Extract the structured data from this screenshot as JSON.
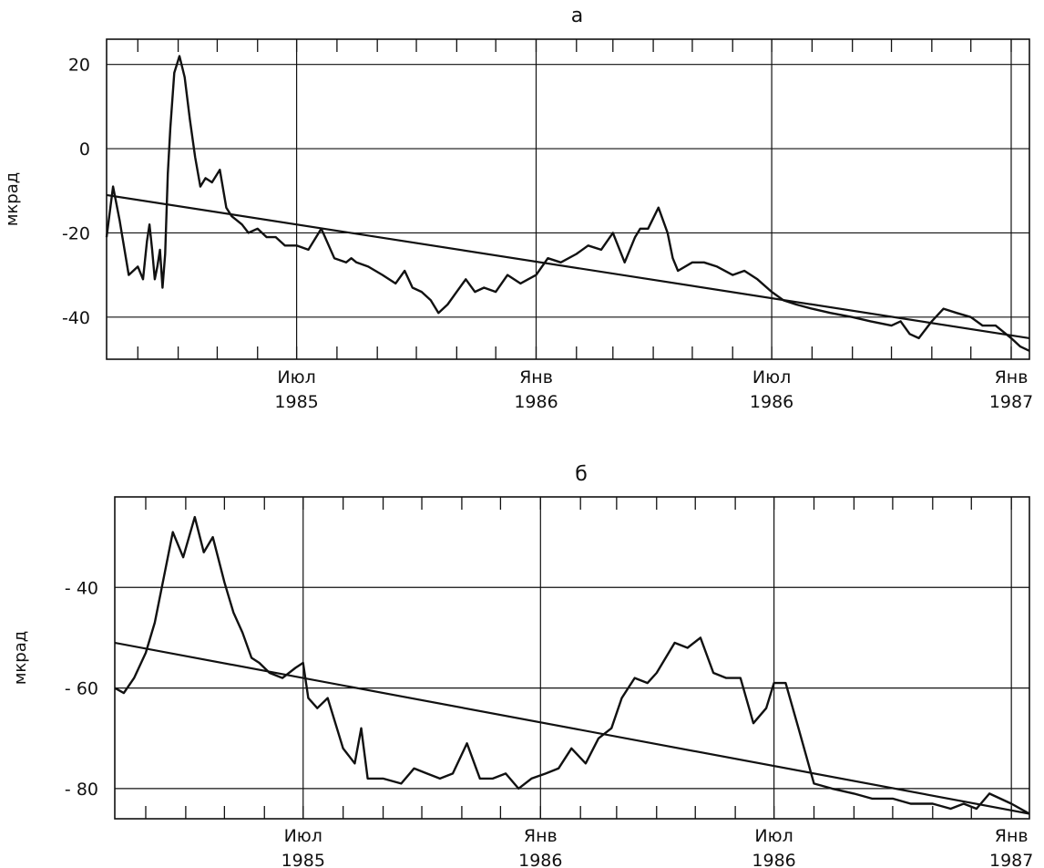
{
  "chart_data": [
    {
      "title": "а",
      "type": "line",
      "ylabel": "мкрад",
      "xlabel": "",
      "xlim": [
        "1985-02-05",
        "1987-01-15"
      ],
      "ylim": [
        -50,
        26
      ],
      "y_ticks": [
        20,
        0,
        -20,
        -40
      ],
      "y_tick_labels": [
        "20",
        "0",
        "-20",
        "-40"
      ],
      "x_ticks": [
        {
          "date": "1985-07-01",
          "label": [
            "Июл",
            "1985"
          ]
        },
        {
          "date": "1986-01-01",
          "label": [
            "Янв",
            "1986"
          ]
        },
        {
          "date": "1986-07-01",
          "label": [
            "Июл",
            "1986"
          ]
        },
        {
          "date": "1987-01-01",
          "label": [
            "Янв",
            "1987"
          ]
        }
      ],
      "grid": true,
      "series": [
        {
          "x": [
            "1985-02-05",
            "1985-02-10",
            "1985-02-15",
            "1985-02-22",
            "1985-03-01",
            "1985-03-05",
            "1985-03-08",
            "1985-03-10",
            "1985-03-12",
            "1985-03-14",
            "1985-03-16",
            "1985-03-18",
            "1985-03-20",
            "1985-03-22",
            "1985-03-24",
            "1985-03-26",
            "1985-03-29",
            "1985-04-02",
            "1985-04-06",
            "1985-04-10",
            "1985-04-14",
            "1985-04-18",
            "1985-04-22",
            "1985-04-27",
            "1985-05-03",
            "1985-05-08",
            "1985-05-12",
            "1985-05-16",
            "1985-05-20",
            "1985-05-25",
            "1985-06-01",
            "1985-06-08",
            "1985-06-15",
            "1985-06-22",
            "1985-07-01",
            "1985-07-10",
            "1985-07-20",
            "1985-07-30",
            "1985-08-08",
            "1985-08-12",
            "1985-08-16",
            "1985-08-25",
            "1985-09-05",
            "1985-09-15",
            "1985-09-22",
            "1985-09-28",
            "1985-10-05",
            "1985-10-12",
            "1985-10-18",
            "1985-10-25",
            "1985-11-01",
            "1985-11-08",
            "1985-11-15",
            "1985-11-22",
            "1985-12-01",
            "1985-12-10",
            "1985-12-20",
            "1986-01-01",
            "1986-01-10",
            "1986-01-20",
            "1986-02-01",
            "1986-02-10",
            "1986-02-20",
            "1986-03-01",
            "1986-03-10",
            "1986-03-18",
            "1986-03-22",
            "1986-03-28",
            "1986-04-05",
            "1986-04-12",
            "1986-04-16",
            "1986-04-20",
            "1986-05-01",
            "1986-05-10",
            "1986-05-20",
            "1986-06-01",
            "1986-06-10",
            "1986-06-20",
            "1986-07-01",
            "1986-07-10",
            "1986-07-20",
            "1986-08-01",
            "1986-08-15",
            "1986-09-01",
            "1986-09-15",
            "1986-10-01",
            "1986-10-08",
            "1986-10-15",
            "1986-10-22",
            "1986-11-01",
            "1986-11-10",
            "1986-11-20",
            "1986-12-01",
            "1986-12-10",
            "1986-12-20",
            "1987-01-01",
            "1987-01-08",
            "1987-01-15"
          ],
          "y": [
            -21,
            -9,
            -17,
            -30,
            -28,
            -31,
            -22,
            -18,
            -24,
            -31,
            -28,
            -24,
            -33,
            -25,
            -6,
            5,
            18,
            22,
            17,
            7,
            -2,
            -9,
            -7,
            -8,
            -5,
            -14,
            -16,
            -17,
            -18,
            -20,
            -19,
            -21,
            -21,
            -23,
            -23,
            -24,
            -19,
            -26,
            -27,
            -26,
            -27,
            -28,
            -30,
            -32,
            -29,
            -33,
            -34,
            -36,
            -39,
            -37,
            -34,
            -31,
            -34,
            -33,
            -34,
            -30,
            -32,
            -30,
            -26,
            -27,
            -25,
            -23,
            -24,
            -20,
            -27,
            -21,
            -19,
            -19,
            -14,
            -20,
            -26,
            -29,
            -27,
            -27,
            -28,
            -30,
            -29,
            -31,
            -34,
            -36,
            -37,
            -38,
            -39,
            -40,
            -41,
            -42,
            -41,
            -44,
            -45,
            -41,
            -38,
            -39,
            -40,
            -42,
            -42,
            -45,
            -47,
            -48
          ]
        },
        {
          "x": [
            "1985-02-05",
            "1987-01-15"
          ],
          "y": [
            -11,
            -45
          ]
        }
      ]
    },
    {
      "title": "б",
      "type": "line",
      "ylabel": "мкрад",
      "xlabel": "",
      "xlim": [
        "1985-02-05",
        "1987-01-15"
      ],
      "ylim": [
        -86,
        -22
      ],
      "y_ticks": [
        -40,
        -60,
        -80
      ],
      "y_tick_labels": [
        "- 40",
        "- 60",
        "- 80"
      ],
      "x_ticks": [
        {
          "date": "1985-07-01",
          "label": [
            "Июл",
            "1985"
          ]
        },
        {
          "date": "1986-01-01",
          "label": [
            "Янв",
            "1986"
          ]
        },
        {
          "date": "1986-07-01",
          "label": [
            "Июл",
            "1986"
          ]
        },
        {
          "date": "1987-01-01",
          "label": [
            "Янв",
            "1987"
          ]
        }
      ],
      "grid": true,
      "series": [
        {
          "x": [
            "1985-02-05",
            "1985-02-12",
            "1985-02-20",
            "1985-03-01",
            "1985-03-08",
            "1985-03-15",
            "1985-03-22",
            "1985-03-30",
            "1985-04-08",
            "1985-04-15",
            "1985-04-22",
            "1985-04-26",
            "1985-05-01",
            "1985-05-08",
            "1985-05-15",
            "1985-05-22",
            "1985-05-28",
            "1985-06-05",
            "1985-06-15",
            "1985-06-25",
            "1985-07-01",
            "1985-07-05",
            "1985-07-12",
            "1985-07-20",
            "1985-08-01",
            "1985-08-10",
            "1985-08-15",
            "1985-08-20",
            "1985-09-01",
            "1985-09-15",
            "1985-09-25",
            "1985-10-05",
            "1985-10-15",
            "1985-10-25",
            "1985-11-05",
            "1985-11-15",
            "1985-11-25",
            "1985-12-05",
            "1985-12-15",
            "1985-12-25",
            "1986-01-05",
            "1986-01-15",
            "1986-01-25",
            "1986-02-05",
            "1986-02-15",
            "1986-02-25",
            "1986-03-05",
            "1986-03-15",
            "1986-03-25",
            "1986-04-01",
            "1986-04-15",
            "1986-04-25",
            "1986-05-05",
            "1986-05-15",
            "1986-05-25",
            "1986-06-05",
            "1986-06-15",
            "1986-06-25",
            "1986-07-01",
            "1986-07-10",
            "1986-07-20",
            "1986-08-01",
            "1986-08-15",
            "1986-09-01",
            "1986-09-15",
            "1986-10-01",
            "1986-10-15",
            "1986-11-01",
            "1986-11-15",
            "1986-11-25",
            "1986-12-05",
            "1986-12-15",
            "1987-01-01",
            "1987-01-15"
          ],
          "y": [
            -60,
            -61,
            -58,
            -53,
            -47,
            -38,
            -29,
            -34,
            -26,
            -33,
            -30,
            -34,
            -39,
            -45,
            -49,
            -54,
            -55,
            -57,
            -58,
            -56,
            -55,
            -62,
            -64,
            -62,
            -72,
            -75,
            -68,
            -78,
            -78,
            -79,
            -76,
            -77,
            -78,
            -77,
            -71,
            -78,
            -78,
            -77,
            -80,
            -78,
            -77,
            -76,
            -72,
            -75,
            -70,
            -68,
            -62,
            -58,
            -59,
            -57,
            -51,
            -52,
            -50,
            -57,
            -58,
            -58,
            -67,
            -64,
            -59,
            -59,
            -68,
            -79,
            -80,
            -81,
            -82,
            -82,
            -83,
            -83,
            -84,
            -83,
            -84,
            -81,
            -83,
            -85
          ]
        },
        {
          "x": [
            "1985-02-05",
            "1987-01-15"
          ],
          "y": [
            -51,
            -85
          ]
        }
      ]
    }
  ]
}
